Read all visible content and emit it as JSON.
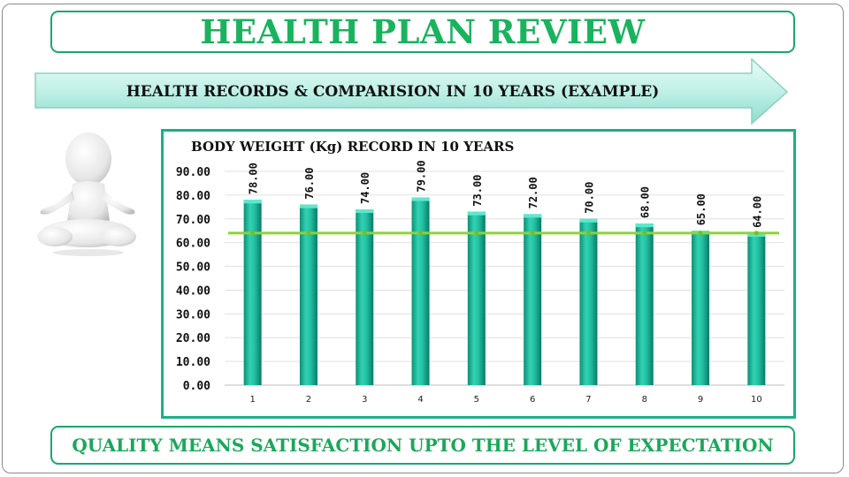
{
  "page": {
    "title": "HEALTH PLAN REVIEW",
    "banner": "HEALTH RECORDS & COMPARISION IN 10 YEARS (EXAMPLE)",
    "footer": "QUALITY MEANS SATISFACTION UPTO THE LEVEL OF EXPECTATION"
  },
  "colors": {
    "title_green": "#19b35e",
    "bar_top": "#4fe3c4",
    "bar_bottom": "#0a7f6a",
    "target_line": "#8fd13f",
    "border_green": "#1aa86a"
  },
  "chart_data": {
    "type": "bar",
    "title": "BODY WEIGHT (Kg) RECORD IN 10 YEARS",
    "categories": [
      "1",
      "2",
      "3",
      "4",
      "5",
      "6",
      "7",
      "8",
      "9",
      "10"
    ],
    "values": [
      78.0,
      76.0,
      74.0,
      79.0,
      73.0,
      72.0,
      70.0,
      68.0,
      65.0,
      64.0
    ],
    "value_labels": [
      "78.00",
      "76.00",
      "74.00",
      "79.00",
      "73.00",
      "72.00",
      "70.00",
      "68.00",
      "65.00",
      "64.00"
    ],
    "target_series": {
      "type": "line",
      "values": [
        64,
        64,
        64,
        64,
        64,
        64,
        64,
        64,
        64,
        64
      ]
    },
    "yticks": [
      "0.00",
      "10.00",
      "20.00",
      "30.00",
      "40.00",
      "50.00",
      "60.00",
      "70.00",
      "80.00",
      "90.00"
    ],
    "ylim": [
      0,
      90
    ],
    "xlabel": "",
    "ylabel": "",
    "grid": true,
    "legend": "none"
  }
}
